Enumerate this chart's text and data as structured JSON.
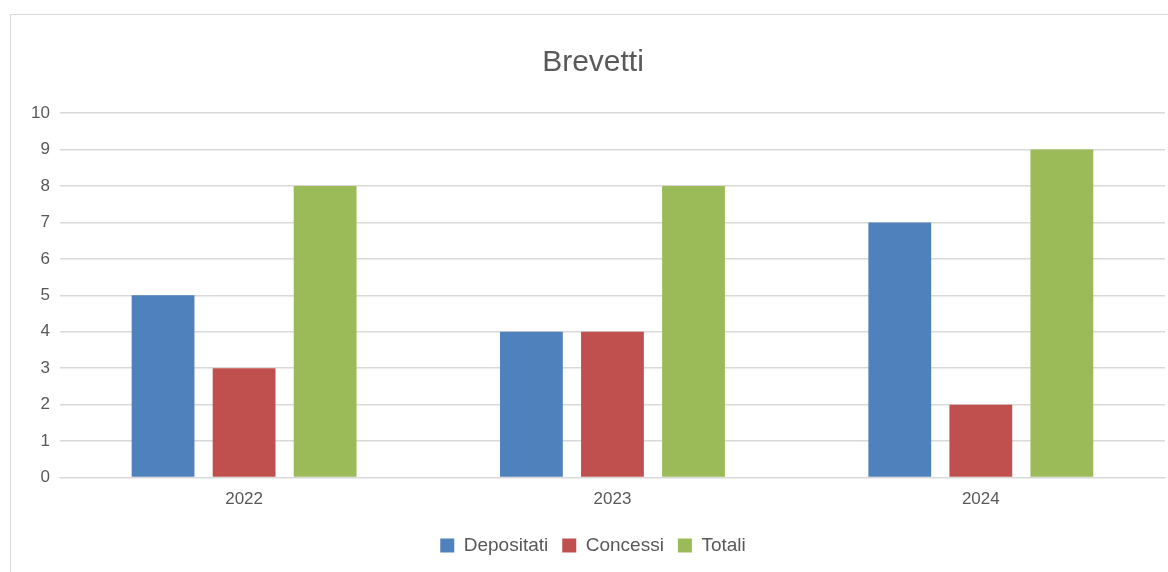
{
  "chart_data": {
    "type": "bar",
    "title": "Brevetti",
    "categories": [
      "2022",
      "2023",
      "2024"
    ],
    "series": [
      {
        "name": "Depositati",
        "color": "#4f81bd",
        "values": [
          5,
          4,
          7
        ]
      },
      {
        "name": "Concessi",
        "color": "#c0504d",
        "values": [
          3,
          4,
          2
        ]
      },
      {
        "name": "Totali",
        "color": "#9bbb59",
        "values": [
          8,
          8,
          9
        ]
      }
    ],
    "ylim": [
      0,
      10
    ],
    "yticks": [
      0,
      1,
      2,
      3,
      4,
      5,
      6,
      7,
      8,
      9,
      10
    ],
    "grid": "y",
    "legend": "bottom"
  }
}
